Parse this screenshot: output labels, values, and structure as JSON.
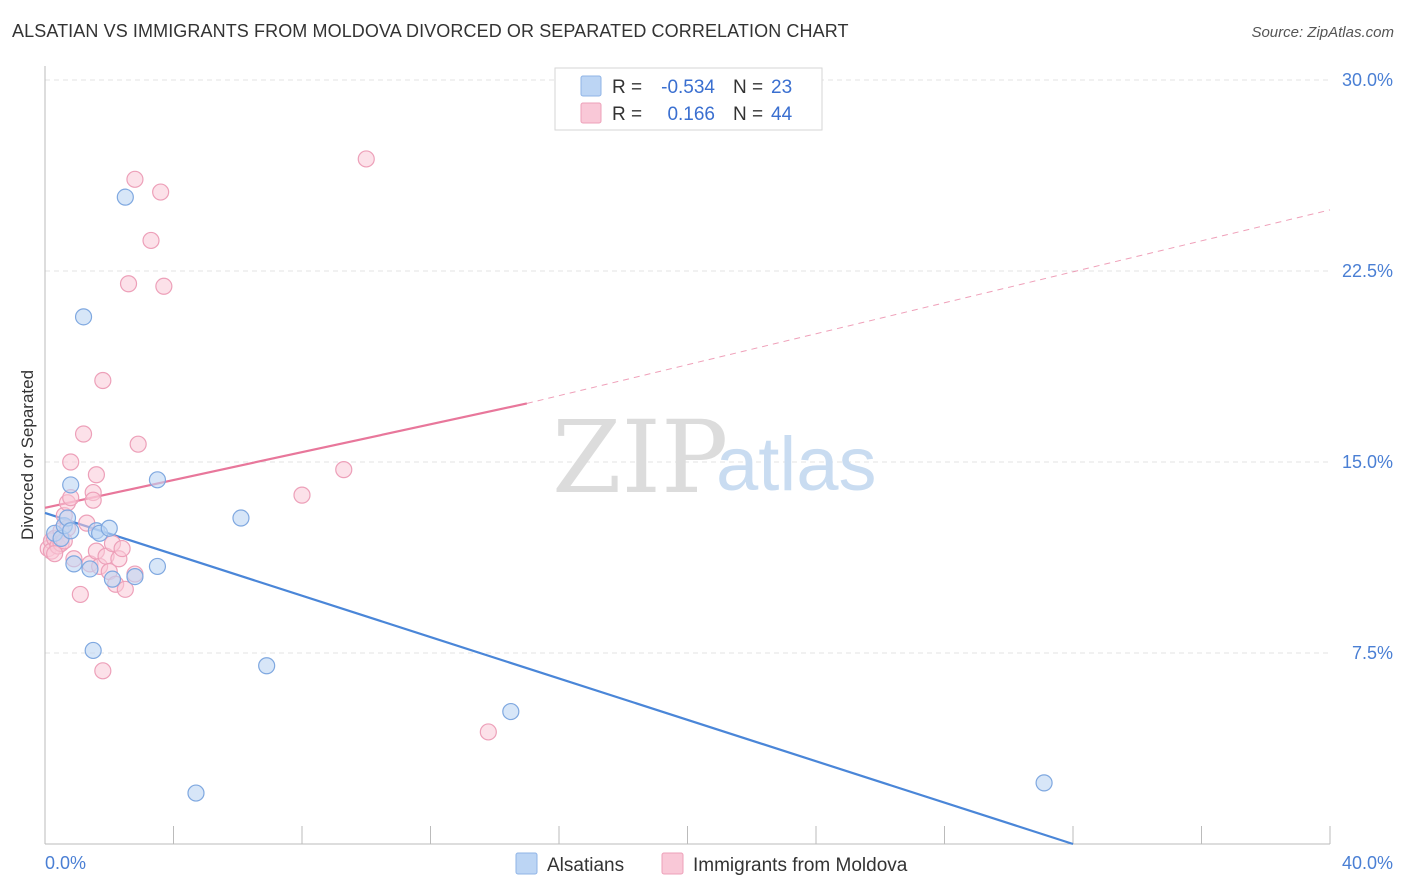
{
  "header": {
    "title": "ALSATIAN VS IMMIGRANTS FROM MOLDOVA DIVORCED OR SEPARATED CORRELATION CHART",
    "source": "Source: ZipAtlas.com"
  },
  "watermark": {
    "zip": "ZIP",
    "atlas": "atlas"
  },
  "legend": {
    "rows": [
      {
        "r_label": "R =",
        "r_value": "-0.534",
        "n_label": "N =",
        "n_value": "23",
        "color": "#a9c8f0"
      },
      {
        "r_label": "R =",
        "r_value": "0.166",
        "n_label": "N =",
        "n_value": "44",
        "color": "#f7b6c9"
      }
    ]
  },
  "bottom_legend": {
    "alsatians": "Alsatians",
    "moldova": "Immigrants from Moldova"
  },
  "chart_data": {
    "type": "scatter",
    "xlabel": "",
    "ylabel": "Divorced or Separated",
    "xlim": [
      0,
      40
    ],
    "ylim": [
      0,
      30.0
    ],
    "x_tick_labels": [
      "0.0%",
      "40.0%"
    ],
    "y_ticks": [
      {
        "value": 7.5,
        "label": "7.5%"
      },
      {
        "value": 15.0,
        "label": "15.0%"
      },
      {
        "value": 22.5,
        "label": "22.5%"
      },
      {
        "value": 30.0,
        "label": "30.0%"
      }
    ],
    "grid": true,
    "colors": {
      "alsatians": "#4a86d8",
      "moldova": "#e8779b"
    },
    "series": [
      {
        "name": "Alsatians",
        "points": [
          [
            0.3,
            12.2
          ],
          [
            0.5,
            12.0
          ],
          [
            0.6,
            12.5
          ],
          [
            0.7,
            12.8
          ],
          [
            0.8,
            12.3
          ],
          [
            0.8,
            14.1
          ],
          [
            0.9,
            11.0
          ],
          [
            1.2,
            20.7
          ],
          [
            1.4,
            10.8
          ],
          [
            1.5,
            7.6
          ],
          [
            1.6,
            12.3
          ],
          [
            1.7,
            12.2
          ],
          [
            2.0,
            12.4
          ],
          [
            2.1,
            10.4
          ],
          [
            2.5,
            25.4
          ],
          [
            2.8,
            10.5
          ],
          [
            3.5,
            10.9
          ],
          [
            3.5,
            14.3
          ],
          [
            4.7,
            2.0
          ],
          [
            6.1,
            12.8
          ],
          [
            6.9,
            7.0
          ],
          [
            14.5,
            5.2
          ],
          [
            31.1,
            2.4
          ]
        ],
        "trend": {
          "x0": 0,
          "y0": 13.0,
          "x1": 32.0,
          "y1": 0
        }
      },
      {
        "name": "Immigrants from Moldova",
        "points": [
          [
            0.1,
            11.6
          ],
          [
            0.2,
            11.9
          ],
          [
            0.2,
            11.5
          ],
          [
            0.3,
            12.0
          ],
          [
            0.4,
            11.7
          ],
          [
            0.5,
            12.3
          ],
          [
            0.5,
            11.8
          ],
          [
            0.6,
            12.9
          ],
          [
            0.7,
            13.4
          ],
          [
            0.7,
            12.4
          ],
          [
            0.8,
            13.6
          ],
          [
            0.8,
            15.0
          ],
          [
            0.9,
            11.2
          ],
          [
            1.1,
            9.8
          ],
          [
            1.2,
            16.1
          ],
          [
            1.3,
            12.6
          ],
          [
            1.4,
            11.0
          ],
          [
            1.5,
            13.8
          ],
          [
            1.5,
            13.5
          ],
          [
            1.6,
            11.5
          ],
          [
            1.6,
            14.5
          ],
          [
            1.7,
            10.9
          ],
          [
            1.8,
            6.8
          ],
          [
            1.8,
            18.2
          ],
          [
            1.9,
            11.3
          ],
          [
            2.0,
            10.7
          ],
          [
            2.1,
            11.8
          ],
          [
            2.2,
            10.2
          ],
          [
            2.3,
            11.2
          ],
          [
            2.4,
            11.6
          ],
          [
            2.5,
            10.0
          ],
          [
            2.6,
            22.0
          ],
          [
            2.8,
            10.6
          ],
          [
            2.8,
            26.1
          ],
          [
            2.9,
            15.7
          ],
          [
            3.3,
            23.7
          ],
          [
            3.6,
            25.6
          ],
          [
            3.7,
            21.9
          ],
          [
            8.0,
            13.7
          ],
          [
            9.3,
            14.7
          ],
          [
            10.0,
            26.9
          ],
          [
            13.8,
            4.4
          ],
          [
            0.3,
            11.4
          ],
          [
            0.6,
            11.9
          ]
        ],
        "trend": {
          "x0": 0,
          "y0": 13.2,
          "x1": 15.0,
          "y1": 17.3,
          "dash_x1": 40.0,
          "dash_y1": 24.9
        }
      }
    ]
  }
}
